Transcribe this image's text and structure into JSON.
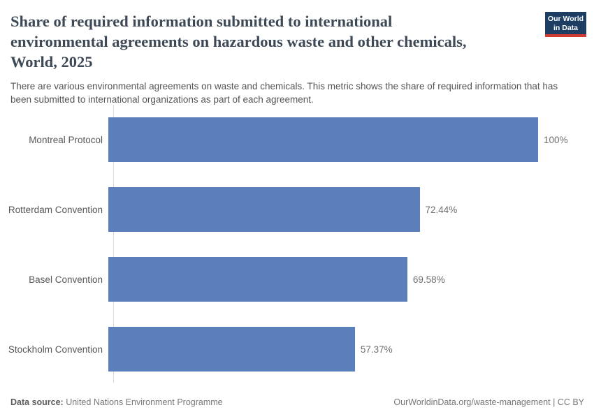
{
  "header": {
    "title_lines": [
      "Share of required information submitted to international",
      "environmental agreements on hazardous waste and other chemicals,",
      "World, 2025"
    ],
    "subtitle": "There are various environmental agreements on waste and chemicals. This metric shows the share of required information that has been submitted to international organizations as part of each agreement.",
    "logo": {
      "line1": "Our World",
      "line2": "in Data"
    }
  },
  "chart_data": {
    "type": "bar",
    "orientation": "horizontal",
    "title": "Share of required information submitted to international environmental agreements on hazardous waste and other chemicals, World, 2025",
    "categories": [
      "Montreal Protocol",
      "Rotterdam Convention",
      "Basel Convention",
      "Stockholm Convention"
    ],
    "values": [
      100,
      72.44,
      69.58,
      57.37
    ],
    "value_labels": [
      "100%",
      "72.44%",
      "69.58%",
      "57.37%"
    ],
    "xlabel": "",
    "ylabel": "",
    "xlim": [
      0,
      100
    ],
    "grid": false,
    "legend": "none",
    "bar_color": "#5b7fba"
  },
  "footer": {
    "source_label": "Data source:",
    "source_text": " United Nations Environment Programme",
    "right_text": "OurWorldinData.org/waste-management | CC BY"
  },
  "colors": {
    "bar": "#5b7fba",
    "title": "#3d4956",
    "subtitle": "#555555",
    "axis_line": "#dddddd",
    "logo_bg": "#1d3d63",
    "logo_accent": "#d13d33"
  }
}
